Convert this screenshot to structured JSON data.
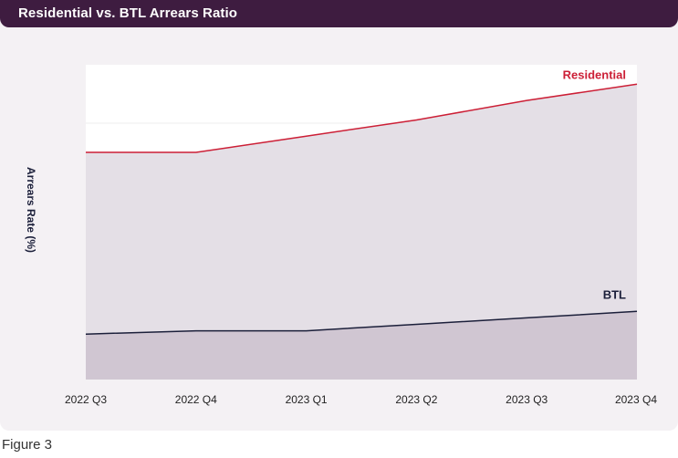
{
  "header": {
    "title": "Residential vs. BTL Arrears Ratio"
  },
  "caption": "Figure 3",
  "colors": {
    "residential": "#cc1f36",
    "btl": "#1b1f3a",
    "header_bg": "#3e1c40",
    "card_bg": "#f4f1f4",
    "area_res": "#e4dfe6",
    "area_btl": "#d0c6d2"
  },
  "chart_data": {
    "type": "area",
    "title": "Residential vs. BTL Arrears Ratio",
    "xlabel": "",
    "ylabel": "Arrears Rate (%)",
    "categories": [
      "2022 Q3",
      "2022 Q4",
      "2023 Q1",
      "2023 Q2",
      "2023 Q3",
      "2023 Q4"
    ],
    "y_tick_labels": [
      "",
      ""
    ],
    "y_tick_values": [
      0.8,
      1.2
    ],
    "ylim": [
      0.41,
      1.38
    ],
    "grid": true,
    "legend": "inline labels at right end of each series",
    "series": [
      {
        "name": "Residential",
        "color": "#cc1f36",
        "values": [
          1.11,
          1.11,
          1.16,
          1.21,
          1.27,
          1.32
        ]
      },
      {
        "name": "BTL",
        "color": "#1b1f3a",
        "values": [
          0.55,
          0.56,
          0.56,
          0.58,
          0.6,
          0.62
        ]
      }
    ]
  }
}
